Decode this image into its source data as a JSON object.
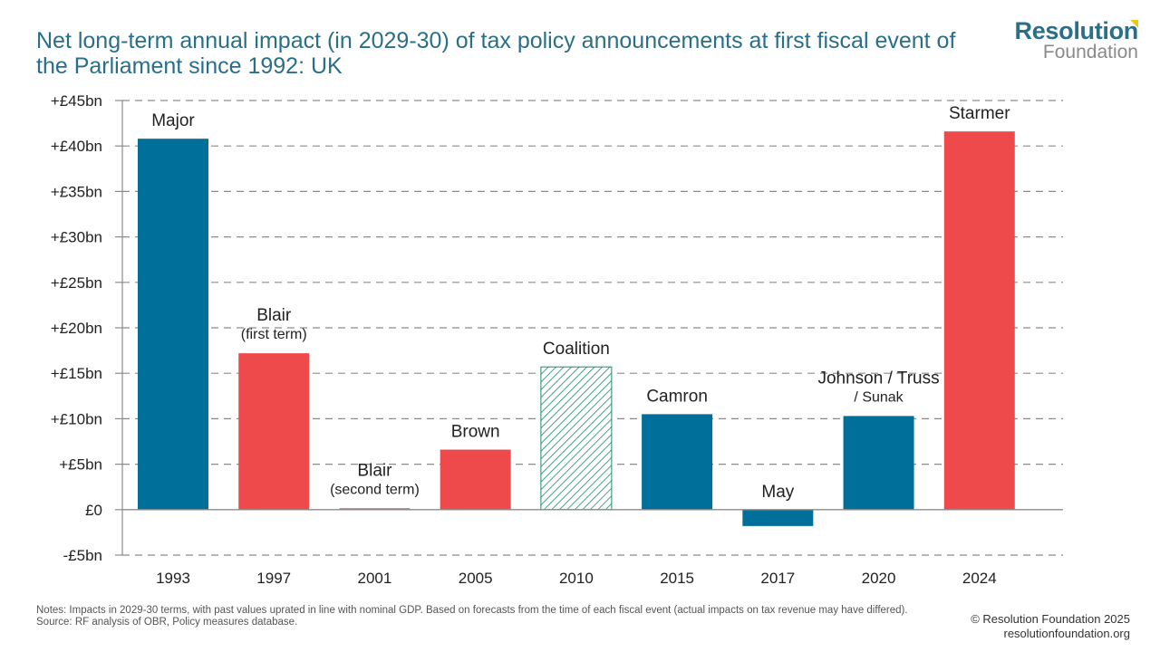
{
  "header": {
    "title": "Net long-term annual impact (in 2029-30) of tax policy announcements at first fiscal event of the Parliament since 1992: UK"
  },
  "logo": {
    "line1": "Resolution",
    "line2": "Foundation"
  },
  "chart_data": {
    "type": "bar",
    "title": "Net long-term annual impact (in 2029-30) of tax policy announcements at first fiscal event of the Parliament since 1992: UK",
    "xlabel": "",
    "ylabel": "",
    "ylim": [
      -5,
      45
    ],
    "grid": true,
    "legend": "none",
    "y_ticks": [
      {
        "value": 45,
        "label": "+£45bn"
      },
      {
        "value": 40,
        "label": "+£40bn"
      },
      {
        "value": 35,
        "label": "+£35bn"
      },
      {
        "value": 30,
        "label": "+£30bn"
      },
      {
        "value": 25,
        "label": "+£25bn"
      },
      {
        "value": 20,
        "label": "+£20bn"
      },
      {
        "value": 15,
        "label": "+£15bn"
      },
      {
        "value": 10,
        "label": "+£10bn"
      },
      {
        "value": 5,
        "label": "+£5bn"
      },
      {
        "value": 0,
        "label": "£0"
      },
      {
        "value": -5,
        "label": "-£5bn"
      }
    ],
    "categories": [
      "1993",
      "1997",
      "2001",
      "2005",
      "2010",
      "2015",
      "2017",
      "2020",
      "2024"
    ],
    "values": [
      40.8,
      17.2,
      0.15,
      6.6,
      15.7,
      10.5,
      -1.8,
      10.3,
      41.6
    ],
    "bar_labels": [
      [
        "Major"
      ],
      [
        "Blair",
        "(first term)"
      ],
      [
        "Blair",
        "(second term)"
      ],
      [
        "Brown"
      ],
      [
        "Coalition"
      ],
      [
        "Camron"
      ],
      [
        "May"
      ],
      [
        "Johnson / Truss",
        "/ Sunak"
      ],
      [
        "Starmer"
      ]
    ],
    "bar_fills": [
      "conservative",
      "labour",
      "labour",
      "labour",
      "coalition",
      "conservative",
      "conservative",
      "conservative",
      "labour"
    ],
    "colors": {
      "conservative": "#00709a",
      "labour": "#ee4a4c",
      "coalition": "#1d8a6e"
    }
  },
  "footer": {
    "notes": "Notes: Impacts in 2029-30 terms, with past values uprated in line with nominal GDP. Based on forecasts from the time of each fiscal event (actual impacts on tax revenue may have differed).",
    "source": "Source: RF analysis of OBR, Policy measures database.",
    "copyright": "© Resolution Foundation 2025",
    "website": "resolutionfoundation.org"
  }
}
